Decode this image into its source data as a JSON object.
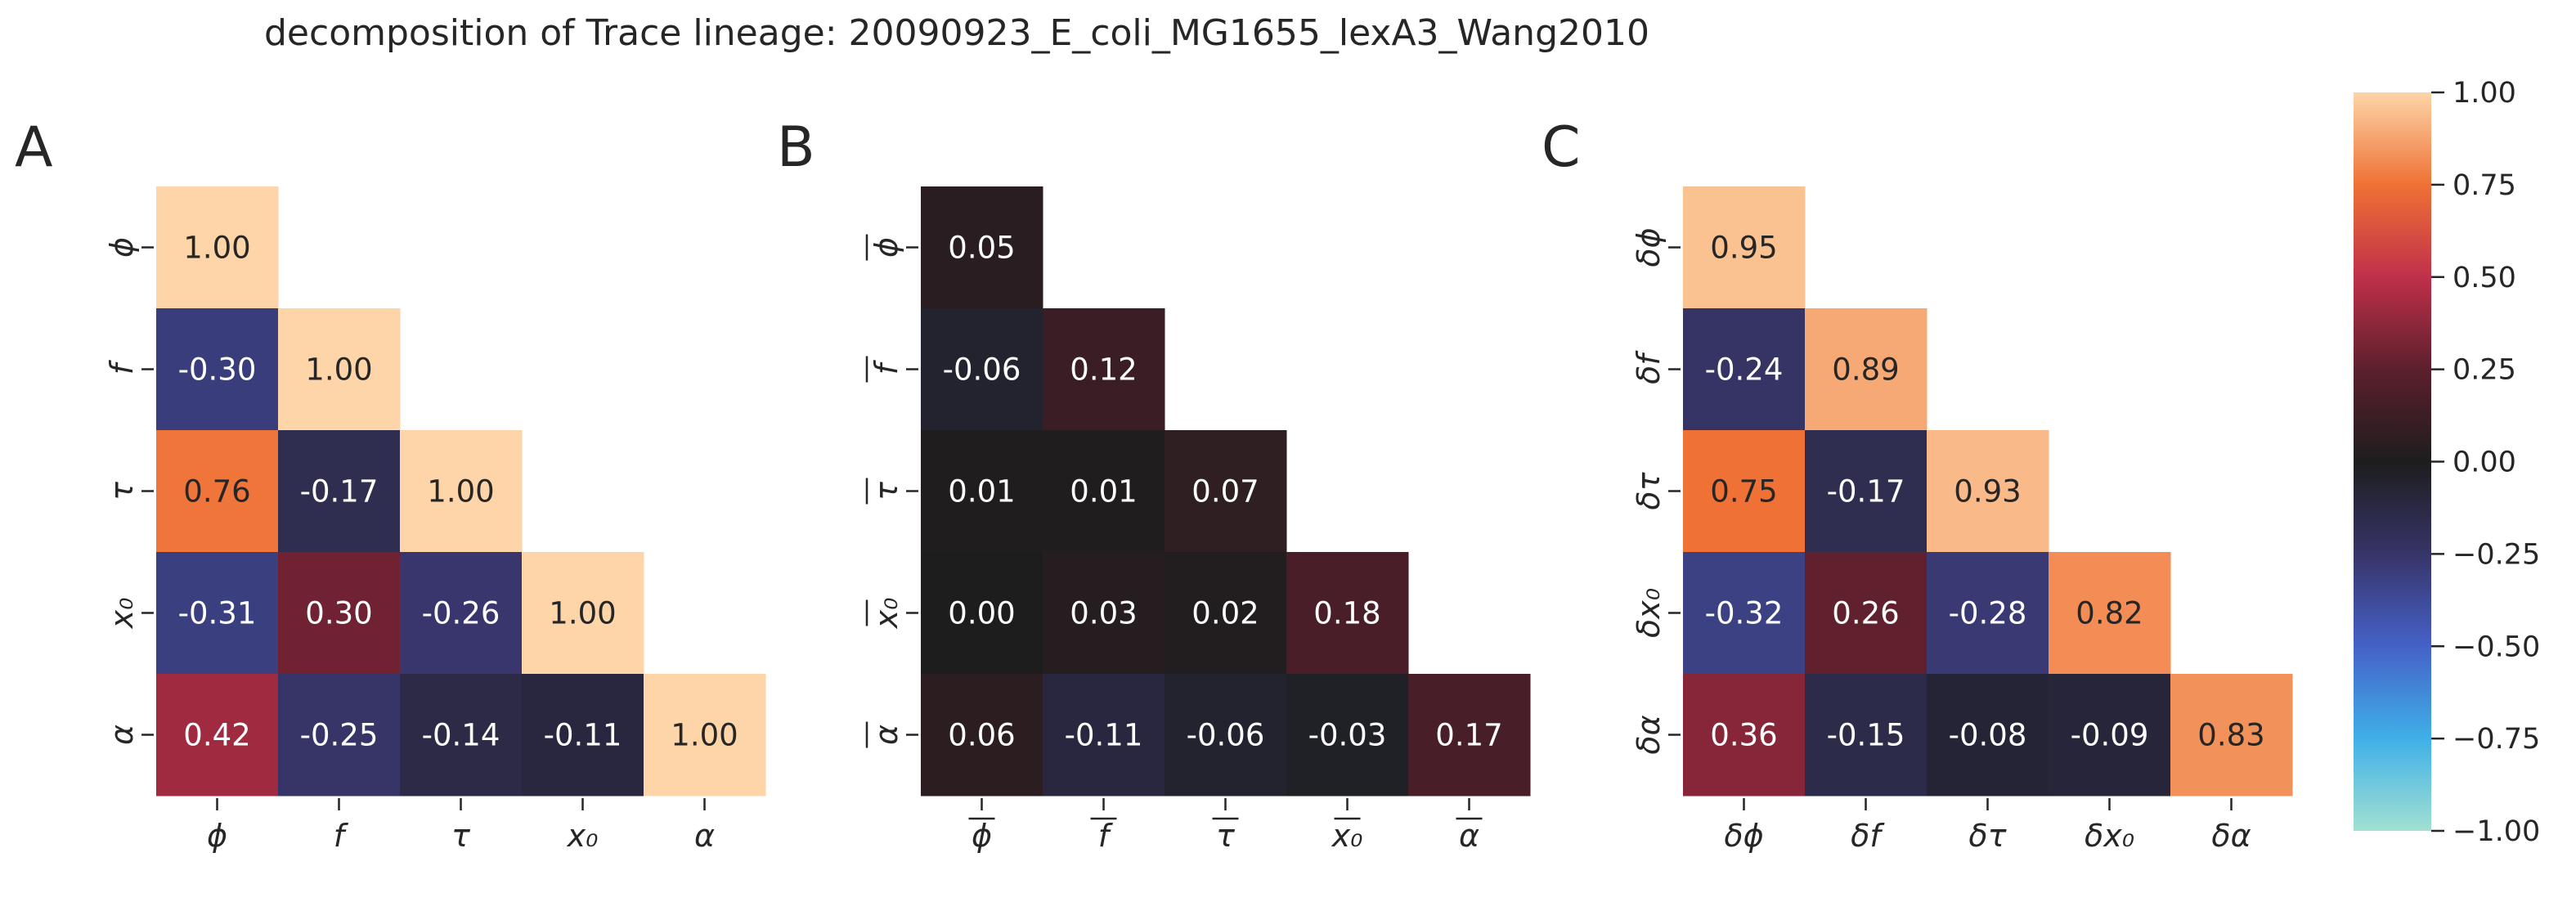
{
  "title": "decomposition of Trace lineage: 20090923_E_coli_MG1655_lexA3_Wang2010",
  "chart_data": [
    {
      "type": "heatmap",
      "panel": "A",
      "labels": [
        "ϕ",
        "f",
        "τ",
        "x₀",
        "α"
      ],
      "bar": false,
      "values": [
        [
          1.0
        ],
        [
          -0.3,
          1.0
        ],
        [
          0.76,
          -0.17,
          1.0
        ],
        [
          -0.31,
          0.3,
          -0.26,
          1.0
        ],
        [
          0.42,
          -0.25,
          -0.14,
          -0.11,
          1.0
        ]
      ]
    },
    {
      "type": "heatmap",
      "panel": "B",
      "labels": [
        "ϕ",
        "f",
        "τ",
        "x₀",
        "α"
      ],
      "bar": true,
      "values": [
        [
          0.05
        ],
        [
          -0.06,
          0.12
        ],
        [
          0.01,
          0.01,
          0.07
        ],
        [
          0.0,
          0.03,
          0.02,
          0.18
        ],
        [
          0.06,
          -0.11,
          -0.06,
          -0.03,
          0.17
        ]
      ]
    },
    {
      "type": "heatmap",
      "panel": "C",
      "labels": [
        "δϕ",
        "δf",
        "δτ",
        "δx₀",
        "δα"
      ],
      "bar": false,
      "values": [
        [
          0.95
        ],
        [
          -0.24,
          0.89
        ],
        [
          0.75,
          -0.17,
          0.93
        ],
        [
          -0.32,
          0.26,
          -0.28,
          0.82
        ],
        [
          0.36,
          -0.15,
          -0.08,
          -0.09,
          0.83
        ]
      ]
    }
  ],
  "colorbar": {
    "range": [
      -1.0,
      1.0
    ],
    "ticks": [
      "1.00",
      "0.75",
      "0.50",
      "0.25",
      "0.00",
      "−0.25",
      "−0.50",
      "−0.75",
      "−1.00"
    ]
  }
}
